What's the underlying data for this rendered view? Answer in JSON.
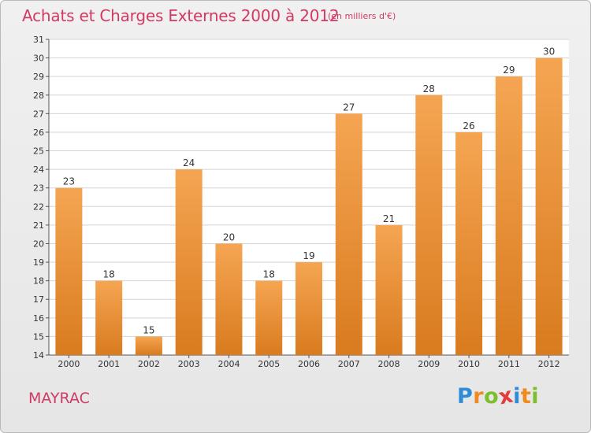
{
  "title": "Achats et Charges Externes 2000 à 2012",
  "subtitle": "(en milliers d'€)",
  "place": "MAYRAC",
  "logo": {
    "text": "Proxiti",
    "letters": [
      {
        "char": "P",
        "color": "#2f8bd8"
      },
      {
        "char": "r",
        "color": "#f08a1c"
      },
      {
        "char": "o",
        "color": "#7cbf2a"
      },
      {
        "char": "x",
        "color": "#e23b3b"
      },
      {
        "char": "i",
        "color": "#2f8bd8"
      },
      {
        "char": "t",
        "color": "#f08a1c"
      },
      {
        "char": "i",
        "color": "#7cbf2a"
      }
    ]
  },
  "colors": {
    "bar_top": "#f5a552",
    "bar_bottom": "#d97b1f",
    "title": "#d13a62",
    "grid": "#d3d3d3"
  },
  "chart_data": {
    "type": "bar",
    "categories": [
      "2000",
      "2001",
      "2002",
      "2003",
      "2004",
      "2005",
      "2006",
      "2007",
      "2008",
      "2009",
      "2010",
      "2011",
      "2012"
    ],
    "values": [
      23,
      18,
      15,
      24,
      20,
      18,
      19,
      27,
      21,
      28,
      26,
      29,
      30
    ],
    "ylim": [
      14,
      31
    ],
    "yticks": [
      14,
      15,
      16,
      17,
      18,
      19,
      20,
      21,
      22,
      23,
      24,
      25,
      26,
      27,
      28,
      29,
      30,
      31
    ],
    "grid": true,
    "data_labels": true
  }
}
